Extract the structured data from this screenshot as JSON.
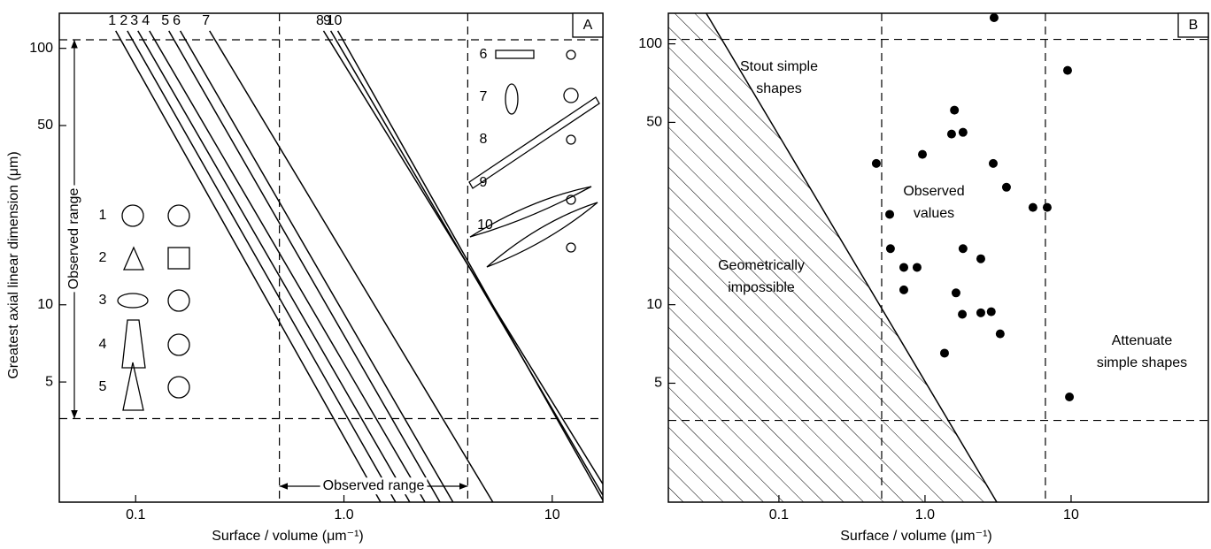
{
  "chart_data": [
    {
      "type": "line",
      "panel_label": "A",
      "xlabel": "Surface / volume (μm⁻¹)",
      "ylabel": "Greatest axial linear dimension (μm)",
      "log_x": true,
      "log_y": true,
      "xlim": [
        0.043,
        17.5
      ],
      "ylim": [
        1.7,
        137
      ],
      "xticks": [
        0.1,
        {
          "value": 1,
          "label": "1.0"
        },
        10
      ],
      "yticks": [
        5,
        10,
        50,
        100
      ],
      "ref_x": [
        0.49,
        3.93
      ],
      "ref_y": [
        3.6,
        108
      ],
      "annotations": [
        "Observed range",
        "Observed range"
      ],
      "series": [
        {
          "name": "1",
          "color": "#000000",
          "x": [
            0.0802,
            1.5
          ],
          "values": [
            117,
            1.7
          ]
        },
        {
          "name": "2",
          "color": "#000000",
          "x": [
            0.0912,
            1.77
          ],
          "values": [
            117,
            1.7
          ]
        },
        {
          "name": "3",
          "color": "#000000",
          "x": [
            0.1025,
            2.07
          ],
          "values": [
            117,
            1.7
          ]
        },
        {
          "name": "4",
          "color": "#000000",
          "x": [
            0.1164,
            2.45
          ],
          "values": [
            117,
            1.7
          ]
        },
        {
          "name": "5",
          "color": "#000000",
          "x": [
            0.1443,
            2.89
          ],
          "values": [
            117,
            1.7
          ]
        },
        {
          "name": "6",
          "color": "#000000",
          "x": [
            0.1637,
            3.34
          ],
          "values": [
            117,
            1.7
          ]
        },
        {
          "name": "7",
          "color": "#000000",
          "x": [
            0.2263,
            5.19
          ],
          "values": [
            117,
            1.7
          ]
        },
        {
          "name": "8",
          "color": "#000000",
          "x": [
            0.798,
            17.5
          ],
          "values": [
            117,
            2.0
          ]
        },
        {
          "name": "9",
          "color": "#000000",
          "x": [
            0.864,
            17.5
          ],
          "values": [
            117,
            1.81
          ]
        },
        {
          "name": "10",
          "color": "#000000",
          "x": [
            0.934,
            17.5
          ],
          "values": [
            117,
            1.73
          ]
        }
      ]
    },
    {
      "type": "scatter",
      "panel_label": "B",
      "xlabel": "Surface / volume (μm⁻¹)",
      "log_x": true,
      "log_y": true,
      "xlim": [
        0.0175,
        87
      ],
      "ylim": [
        1.75,
        131
      ],
      "xticks": [
        0.1,
        {
          "value": 1,
          "label": "1.0"
        },
        10
      ],
      "yticks": [
        5,
        10,
        50,
        100
      ],
      "ref_x": [
        0.505,
        6.67
      ],
      "ref_y": [
        3.6,
        104
      ],
      "boundary": {
        "x": [
          0.0318,
          3.1
        ],
        "values": [
          131,
          1.75
        ]
      },
      "annotations": [
        [
          "Stout simple",
          "shapes"
        ],
        [
          "Observed",
          "values"
        ],
        [
          "Geometrically",
          "impossible"
        ],
        [
          "Attenuate",
          "simple shapes"
        ]
      ],
      "series": [
        {
          "color": "#000000",
          "x": [
            2.97,
            9.46,
            1.59,
            1.52,
            1.82,
            0.96,
            0.464,
            2.93,
            3.61,
            5.48,
            6.86,
            0.573,
            0.58,
            1.82,
            2.41,
            0.716,
            0.882,
            0.716,
            1.63,
            1.8,
            2.41,
            2.84,
            3.27,
            1.36,
            9.74
          ],
          "values": [
            126,
            79.1,
            55.7,
            45.1,
            45.8,
            37.7,
            34.8,
            34.8,
            28.2,
            23.6,
            23.6,
            22.2,
            16.4,
            16.4,
            15.0,
            13.9,
            13.9,
            11.4,
            11.1,
            9.19,
            9.31,
            9.4,
            7.73,
            6.52,
            4.43
          ]
        }
      ]
    }
  ]
}
